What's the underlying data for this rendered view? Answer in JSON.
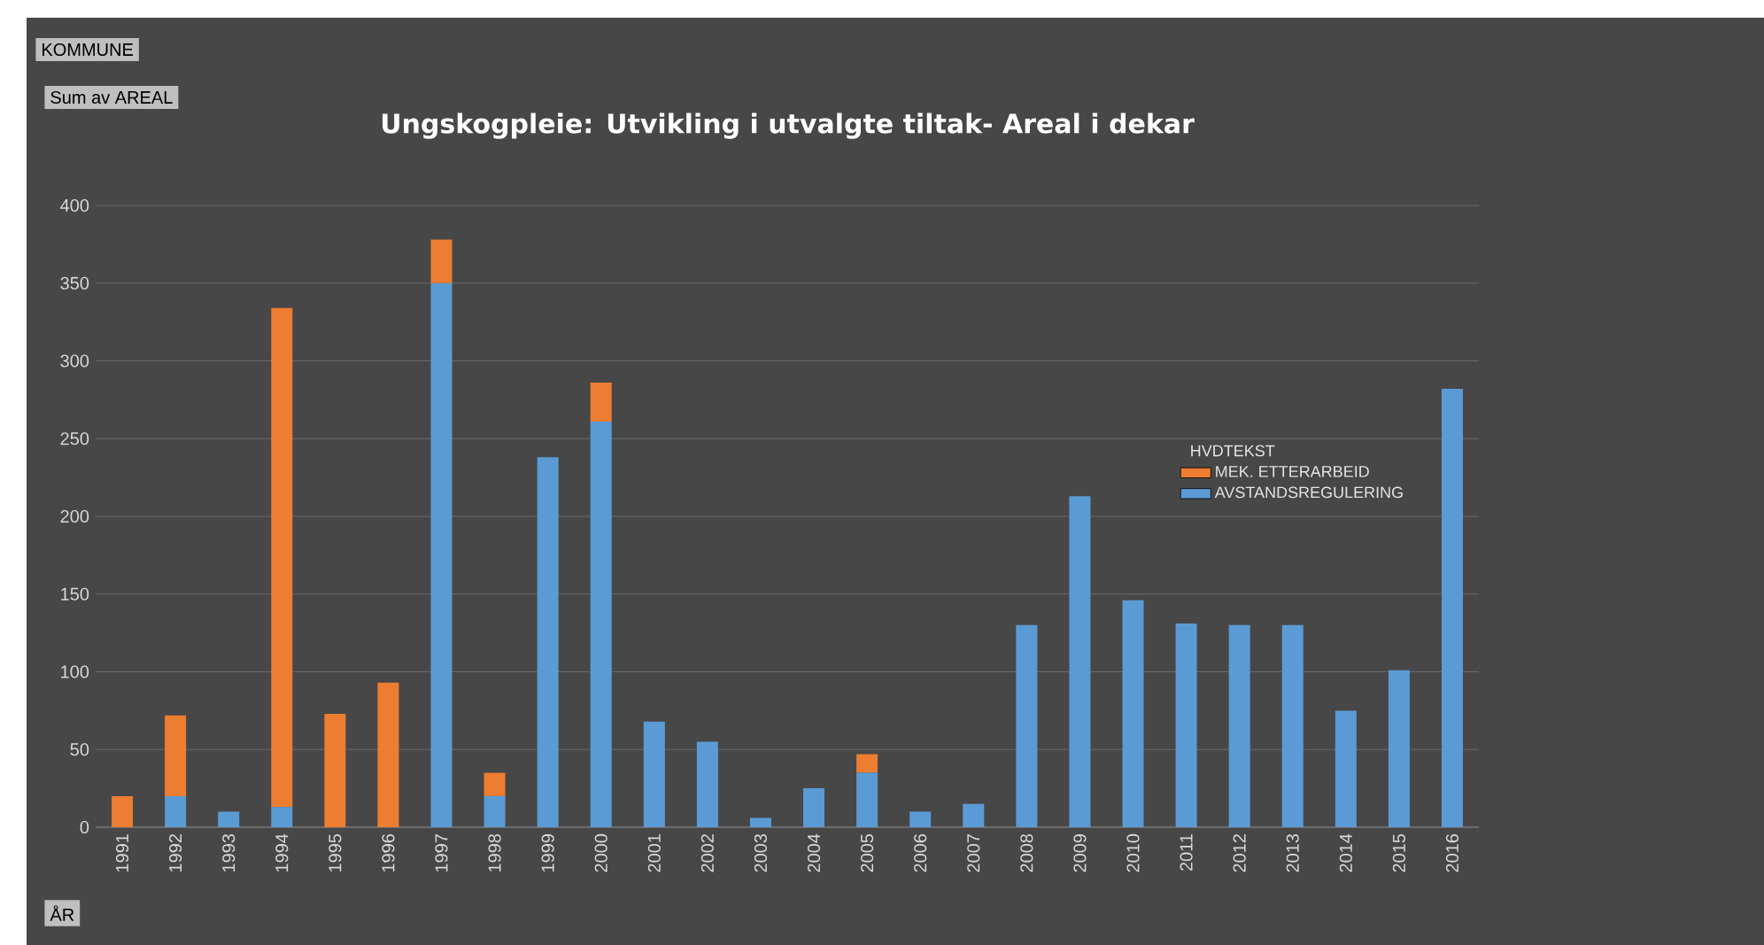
{
  "chart_data": {
    "type": "bar",
    "title": "Ungskogpleie: Utvikling i utvalgte tiltak- Areal i dekar",
    "categories": [
      "1991",
      "1992",
      "1993",
      "1994",
      "1995",
      "1996",
      "1997",
      "1998",
      "1999",
      "2000",
      "2001",
      "2002",
      "2003",
      "2004",
      "2005",
      "2006",
      "2007",
      "2008",
      "2009",
      "2010",
      "2011",
      "2012",
      "2013",
      "2014",
      "2015",
      "2016"
    ],
    "series": [
      {
        "name": "AVSTANDSREGULERING",
        "color": "#5b9bd5",
        "values": [
          0,
          20,
          10,
          13,
          0,
          0,
          350,
          20,
          238,
          261,
          68,
          55,
          6,
          25,
          35,
          10,
          15,
          130,
          213,
          146,
          131,
          130,
          130,
          75,
          101,
          282
        ]
      },
      {
        "name": "MEK. ETTERARBEID",
        "color": "#ed7d31",
        "values": [
          20,
          52,
          0,
          321,
          73,
          93,
          28,
          15,
          0,
          25,
          0,
          0,
          0,
          0,
          12,
          0,
          0,
          0,
          0,
          0,
          0,
          0,
          0,
          0,
          0,
          0
        ]
      }
    ],
    "stacked": true,
    "ylim": [
      0,
      400
    ],
    "yticks": [
      0,
      50,
      100,
      150,
      200,
      250,
      300,
      350,
      400
    ],
    "grid": "y",
    "legend": "right",
    "legend_title": "HVDTEKST",
    "annotations": [
      "KOMMUNE",
      "Sum av AREAL",
      "ÅR"
    ]
  }
}
